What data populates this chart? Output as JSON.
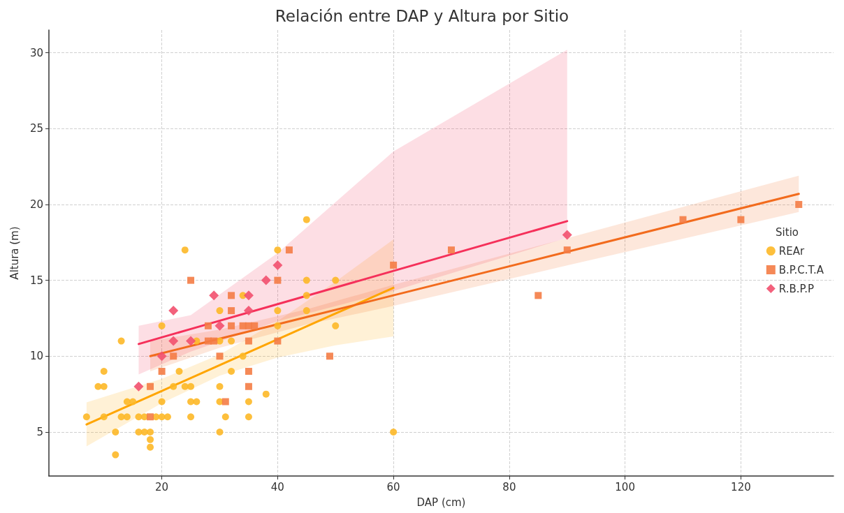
{
  "chart_data": {
    "type": "scatter",
    "title": "Relación entre DAP y Altura por Sitio",
    "xlabel": "DAP (cm)",
    "ylabel": "Altura (m)",
    "legend_title": "Sitio",
    "xlim": [
      0.5,
      136
    ],
    "xticks": [
      20,
      40,
      60,
      80,
      100,
      120
    ],
    "ylim": [
      2.1,
      31.5
    ],
    "yticks": [
      5,
      10,
      15,
      20,
      25,
      30
    ],
    "grid": true,
    "legend": "right",
    "series": [
      {
        "name": "REAr",
        "marker": "circle",
        "color": "#fdb827",
        "x": [
          7,
          9,
          10,
          10,
          10,
          12,
          12,
          13,
          13,
          14,
          14,
          15,
          16,
          16,
          17,
          17,
          18,
          18,
          18,
          19,
          20,
          20,
          20,
          21,
          22,
          23,
          24,
          24,
          25,
          25,
          25,
          26,
          26,
          30,
          30,
          30,
          30,
          30,
          31,
          32,
          32,
          34,
          34,
          35,
          35,
          38,
          40,
          40,
          40,
          45,
          45,
          45,
          45,
          50,
          50,
          60
        ],
        "values": [
          6,
          8,
          8,
          9,
          6,
          5,
          3.5,
          11,
          6,
          6,
          7,
          7,
          6,
          5,
          6,
          5,
          5,
          4.5,
          4,
          6,
          6,
          7,
          12,
          6,
          8,
          9,
          17,
          8,
          8,
          7,
          6,
          7,
          11,
          13,
          11,
          8,
          7,
          5,
          6,
          11,
          9,
          14,
          10,
          7,
          6,
          7.5,
          17,
          13,
          12,
          19,
          15,
          14,
          13,
          15,
          12,
          5
        ]
      },
      {
        "name": "B.P.C.T.A",
        "marker": "square",
        "color": "#f47c45",
        "x": [
          18,
          18,
          20,
          22,
          25,
          28,
          28,
          29,
          30,
          31,
          32,
          32,
          32,
          34,
          35,
          36,
          35,
          35,
          35,
          40,
          40,
          42,
          49,
          60,
          70,
          85,
          90,
          110,
          120,
          130
        ],
        "values": [
          8,
          6,
          9,
          10,
          15,
          12,
          11,
          11,
          10,
          7,
          14,
          13,
          12,
          12,
          12,
          12,
          11,
          9,
          8,
          15,
          11,
          17,
          10,
          16,
          17,
          14,
          17,
          19,
          19,
          20
        ]
      },
      {
        "name": "R.B.P.P",
        "marker": "diamond",
        "color": "#f2506e",
        "x": [
          16,
          20,
          22,
          22,
          25,
          29,
          30,
          35,
          35,
          38,
          40,
          90
        ],
        "values": [
          8,
          10,
          13,
          11,
          11,
          14,
          12,
          14,
          13,
          15,
          16,
          18
        ]
      },
      {
        "type": "line",
        "marker": "none",
        "color": "#ffa500",
        "x": [
          7,
          20,
          30,
          40,
          50,
          60
        ],
        "values": [
          5.5,
          7.71,
          9.41,
          11.11,
          12.81,
          14.5
        ],
        "lower": [
          4.05,
          6.91,
          8.71,
          9.91,
          10.71,
          11.3
        ],
        "upper": [
          6.95,
          8.51,
          10.11,
          12.31,
          14.91,
          17.7
        ]
      },
      {
        "type": "line",
        "marker": "none",
        "color": "#f26b1d",
        "x": [
          18,
          30,
          45,
          60,
          90,
          130
        ],
        "values": [
          10,
          11.15,
          12.58,
          14.01,
          16.88,
          20.7
        ],
        "lower": [
          9,
          10.55,
          12.08,
          13.31,
          15.98,
          19.5
        ],
        "upper": [
          11,
          11.75,
          13.08,
          14.71,
          17.78,
          21.9
        ]
      },
      {
        "type": "line",
        "marker": "none",
        "color": "#f5305a",
        "x": [
          16,
          25,
          40,
          60,
          90
        ],
        "values": [
          10.8,
          11.79,
          13.43,
          15.62,
          18.9
        ],
        "lower": [
          8.8,
          10.3,
          12.3,
          14.3,
          17.8
        ],
        "upper": [
          12,
          12.7,
          16.8,
          23.5,
          30.2
        ]
      }
    ]
  }
}
